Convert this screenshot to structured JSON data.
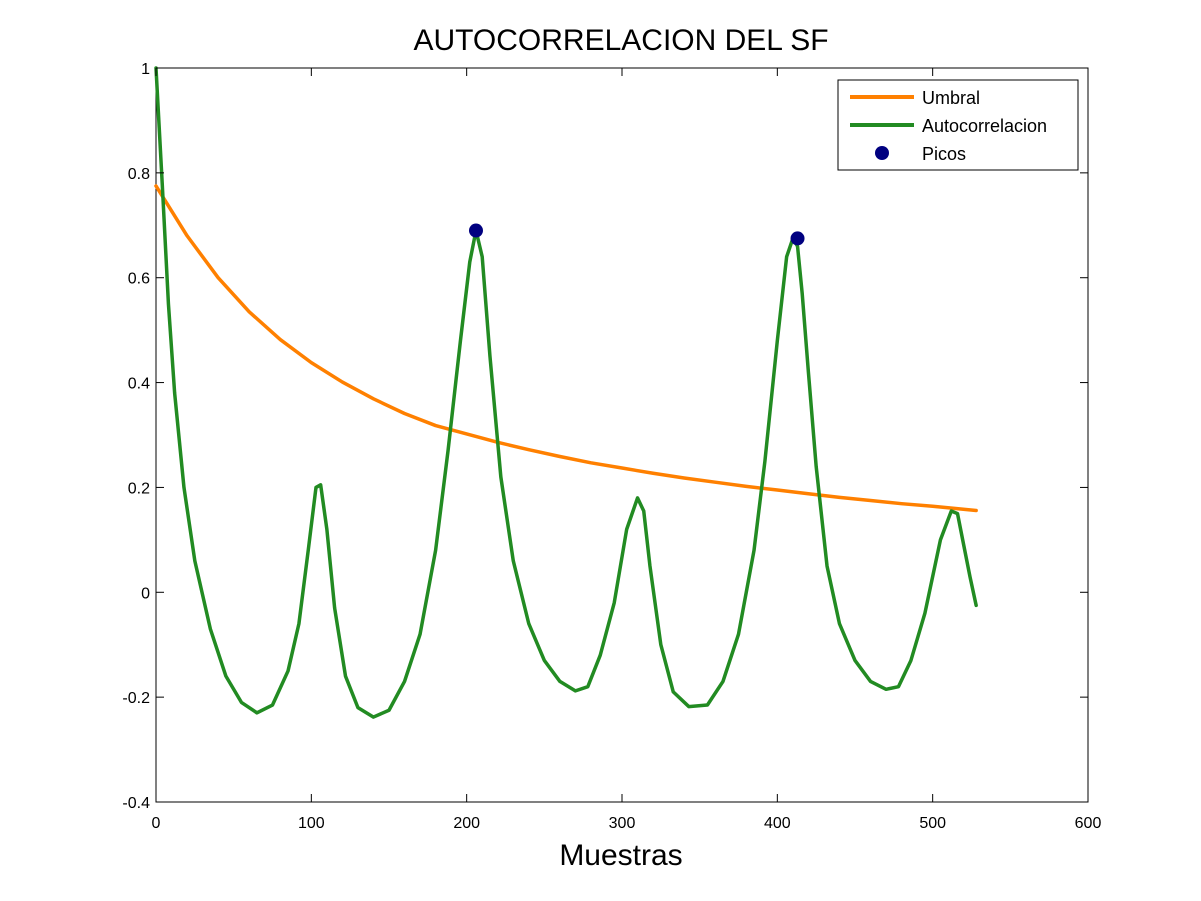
{
  "chart_data": {
    "type": "line",
    "title": "AUTOCORRELACION DEL SF",
    "xlabel": "Muestras",
    "ylabel": "",
    "xlim": [
      0,
      600
    ],
    "ylim": [
      -0.4,
      1
    ],
    "xticks": [
      0,
      100,
      200,
      300,
      400,
      500,
      600
    ],
    "xtick_labels": [
      "0",
      "100",
      "200",
      "300",
      "400",
      "500",
      "600"
    ],
    "yticks": [
      -0.4,
      -0.2,
      0,
      0.2,
      0.4,
      0.6,
      0.8,
      1
    ],
    "ytick_labels": [
      "-0.4",
      "-0.2",
      "0",
      "0.2",
      "0.4",
      "0.6",
      "0.8",
      "1"
    ],
    "grid": false,
    "legend_position": "top-right",
    "colors": {
      "umbral": "#ff8000",
      "autocorrelacion": "#228b22",
      "picos": "#000080"
    },
    "series": [
      {
        "name": "Umbral",
        "kind": "line",
        "x": [
          0,
          20,
          40,
          60,
          80,
          100,
          120,
          140,
          160,
          180,
          200,
          220,
          240,
          260,
          280,
          300,
          320,
          340,
          360,
          380,
          400,
          420,
          440,
          460,
          480,
          500,
          528
        ],
        "y": [
          0.775,
          0.68,
          0.6,
          0.535,
          0.482,
          0.438,
          0.401,
          0.369,
          0.341,
          0.318,
          0.302,
          0.286,
          0.272,
          0.259,
          0.247,
          0.237,
          0.227,
          0.218,
          0.21,
          0.202,
          0.195,
          0.188,
          0.181,
          0.175,
          0.169,
          0.164,
          0.156
        ]
      },
      {
        "name": "Autocorrelacion",
        "kind": "line",
        "x": [
          0,
          4,
          8,
          12,
          18,
          25,
          35,
          45,
          55,
          65,
          75,
          85,
          92,
          98,
          103,
          106,
          110,
          115,
          122,
          130,
          140,
          150,
          160,
          170,
          180,
          188,
          196,
          202,
          206,
          210,
          215,
          222,
          230,
          240,
          250,
          260,
          270,
          278,
          286,
          295,
          303,
          310,
          314,
          318,
          325,
          333,
          343,
          355,
          365,
          375,
          385,
          392,
          400,
          406,
          410,
          413,
          416,
          420,
          425,
          432,
          440,
          450,
          460,
          470,
          478,
          486,
          495,
          505,
          512,
          516,
          520,
          524,
          528
        ],
        "y": [
          1.0,
          0.78,
          0.55,
          0.38,
          0.2,
          0.06,
          -0.07,
          -0.16,
          -0.21,
          -0.23,
          -0.215,
          -0.15,
          -0.06,
          0.08,
          0.2,
          0.205,
          0.12,
          -0.03,
          -0.16,
          -0.22,
          -0.238,
          -0.225,
          -0.17,
          -0.08,
          0.08,
          0.27,
          0.48,
          0.63,
          0.69,
          0.64,
          0.45,
          0.22,
          0.06,
          -0.06,
          -0.13,
          -0.17,
          -0.188,
          -0.18,
          -0.12,
          -0.02,
          0.12,
          0.18,
          0.155,
          0.05,
          -0.1,
          -0.19,
          -0.218,
          -0.215,
          -0.17,
          -0.08,
          0.08,
          0.25,
          0.48,
          0.64,
          0.675,
          0.66,
          0.57,
          0.42,
          0.24,
          0.05,
          -0.06,
          -0.13,
          -0.17,
          -0.185,
          -0.18,
          -0.13,
          -0.04,
          0.1,
          0.155,
          0.15,
          0.09,
          0.03,
          -0.025
        ]
      },
      {
        "name": "Picos",
        "kind": "scatter",
        "x": [
          206,
          413
        ],
        "y": [
          0.69,
          0.675
        ]
      }
    ]
  }
}
